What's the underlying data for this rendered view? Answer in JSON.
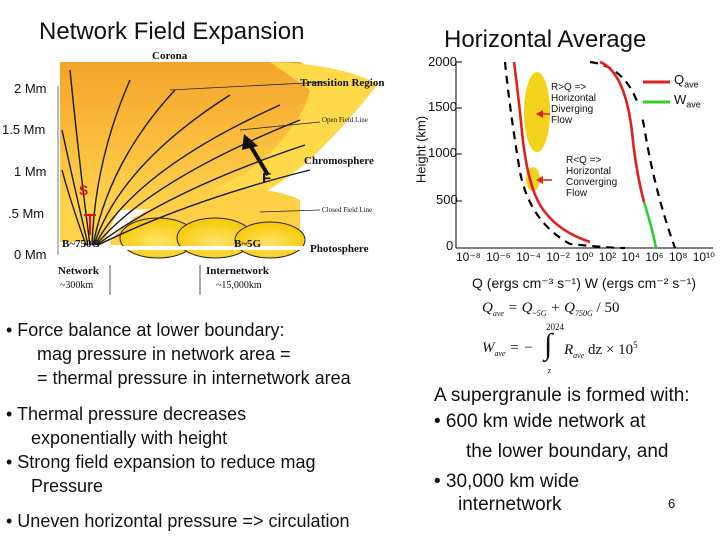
{
  "slide": {
    "left_title": "Network Field Expansion",
    "right_title": "Horizontal Average",
    "page_number": "6"
  },
  "left_diagram": {
    "corona_label": "Corona",
    "transition_label": "Transition Region",
    "open_field_label": "Open Field Line",
    "chromosphere_label": "Chromosphere",
    "closed_field_label": "Closed Field Line",
    "photosphere_label": "Photosphere",
    "s_label": "S",
    "f_label": "F",
    "b_network": "B~750G",
    "b_internetwork": "B~5G",
    "network_label": "Network",
    "network_size": "~300km",
    "internetwork_label": "Internetwork",
    "internetwork_size": "~15,000km",
    "y_ticks": [
      "2 Mm",
      "1.5 Mm",
      "1 Mm",
      ".5 Mm",
      "0 Mm"
    ]
  },
  "right_chart": {
    "ylabel": "Height (km)",
    "xlabel": "Q (ergs cm⁻³ s⁻¹) W (ergs cm⁻² s⁻¹)",
    "y_ticks": [
      "2000",
      "1500",
      "1000",
      "500",
      "0"
    ],
    "x_ticks": [
      "10⁻⁸",
      "10⁻⁶",
      "10⁻⁴",
      "10⁻²",
      "10⁰",
      "10²",
      "10⁴",
      "10⁶",
      "10⁸",
      "10¹⁰"
    ],
    "legend_q": "Q",
    "legend_q_sub": "ave",
    "legend_w": "W",
    "legend_w_sub": "ave",
    "anno_diverging": [
      "R>Q =>",
      "Horizontal",
      "Diverging",
      "Flow"
    ],
    "anno_converging": [
      "R<Q =>",
      "Horizontal",
      "Converging",
      "Flow"
    ],
    "colors": {
      "q": "#e02020",
      "w": "#2ecc2e",
      "ellipse": "#f2d21b",
      "dashed": "#000000"
    }
  },
  "equations": {
    "eq1": "Q_ave = Q_~5G + Q_750G / 50",
    "eq2": "W_ave = − ∫ R_ave dz × 10⁵",
    "eq1_lhs": "Q",
    "eq1_lhs_sub": "ave",
    "eq1_a": "Q",
    "eq1_a_sub": "~5G",
    "eq1_b": "Q",
    "eq1_b_sub": "750G",
    "eq1_tail": "/ 50",
    "eq2_lhs": "W",
    "eq2_lhs_sub": "ave",
    "eq2_upper": "2024",
    "eq2_lower": "z",
    "eq2_integrand": "R",
    "eq2_integrand_sub": "ave",
    "eq2_tail": "dz × 10",
    "eq2_exp": "5"
  },
  "bullets_left": [
    "•  Force balance at lower boundary:",
    "mag pressure in network area =",
    "= thermal pressure in internetwork area",
    "•  Thermal pressure decreases",
    "exponentially with height",
    "•  Strong field expansion to reduce mag",
    "Pressure",
    "•  Uneven horizontal pressure => circulation"
  ],
  "right_text": [
    "A supergranule is formed with:",
    "•  600 km wide network at",
    "the lower boundary, and",
    "•  30,000 km wide",
    "internetwork"
  ]
}
